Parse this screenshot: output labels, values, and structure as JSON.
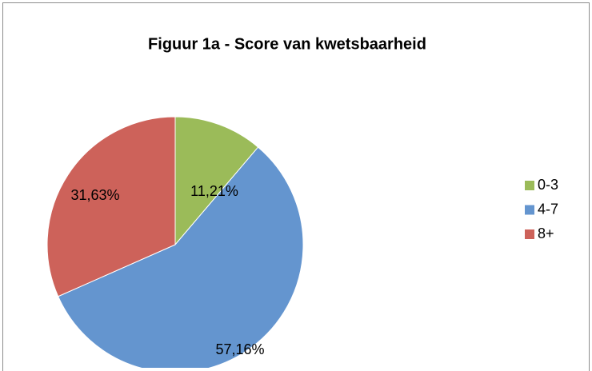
{
  "chart_data": {
    "type": "pie",
    "title": "Figuur 1a - Score van kwetsbaarheid",
    "categories": [
      "0-3",
      "4-7",
      "8+"
    ],
    "values": [
      11.21,
      57.16,
      31.63
    ],
    "value_labels": [
      "11,21%",
      "57,16%",
      "31,63%"
    ],
    "colors": [
      "#9bbb59",
      "#6495cf",
      "#cd625a"
    ],
    "legend": "right"
  }
}
